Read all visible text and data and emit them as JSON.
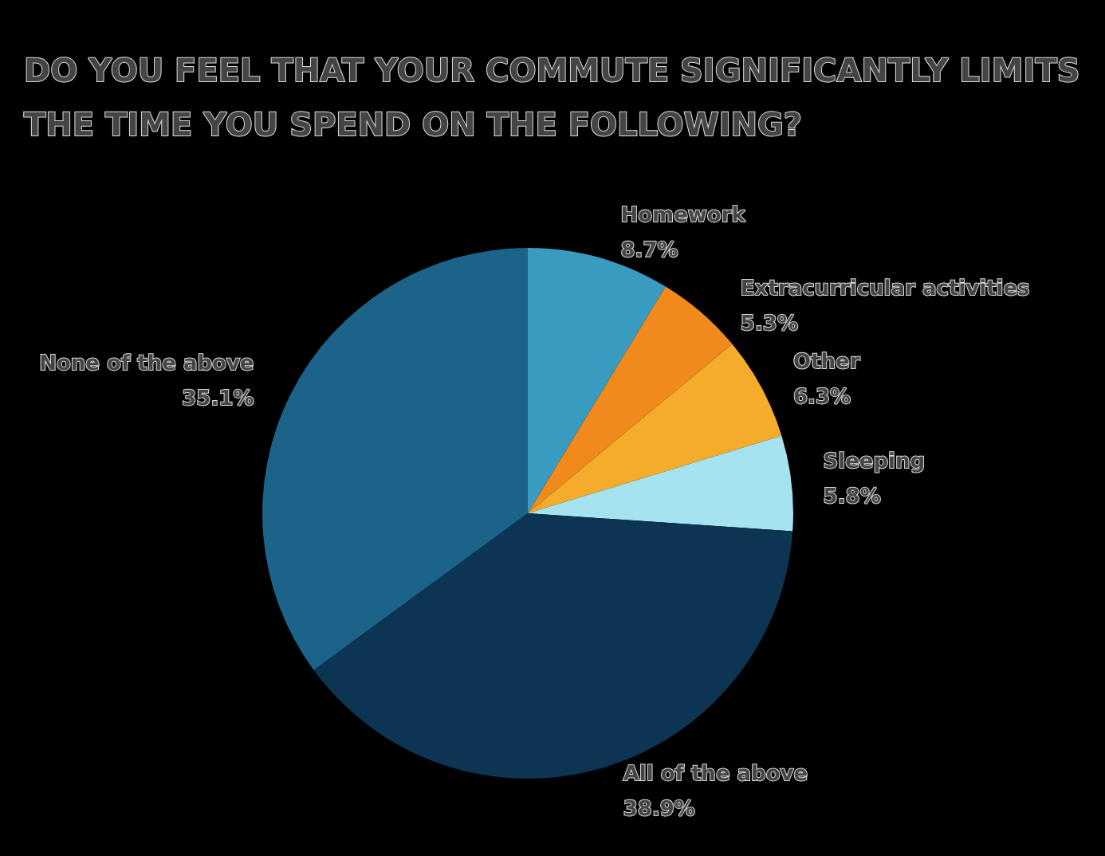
{
  "chart_data": {
    "type": "pie",
    "title": "DO YOU FEEL THAT YOUR COMMUTE SIGNIFICANTLY LIMITS THE TIME YOU SPEND ON THE FOLLOWING?",
    "categories": [
      "Homework",
      "Extracurricular activities",
      "Other",
      "Sleeping",
      "All of the above",
      "None of the above"
    ],
    "values": [
      8.7,
      5.3,
      6.3,
      5.8,
      38.9,
      35.1
    ],
    "value_labels": [
      "8.7%",
      "5.3%",
      "6.3%",
      "5.8%",
      "38.9%",
      "35.1%"
    ],
    "colors": [
      "#3a9bc1",
      "#f08a1c",
      "#f5ac2a",
      "#a6e3f0",
      "#0b3552",
      "#1c6389"
    ],
    "legend": false
  }
}
